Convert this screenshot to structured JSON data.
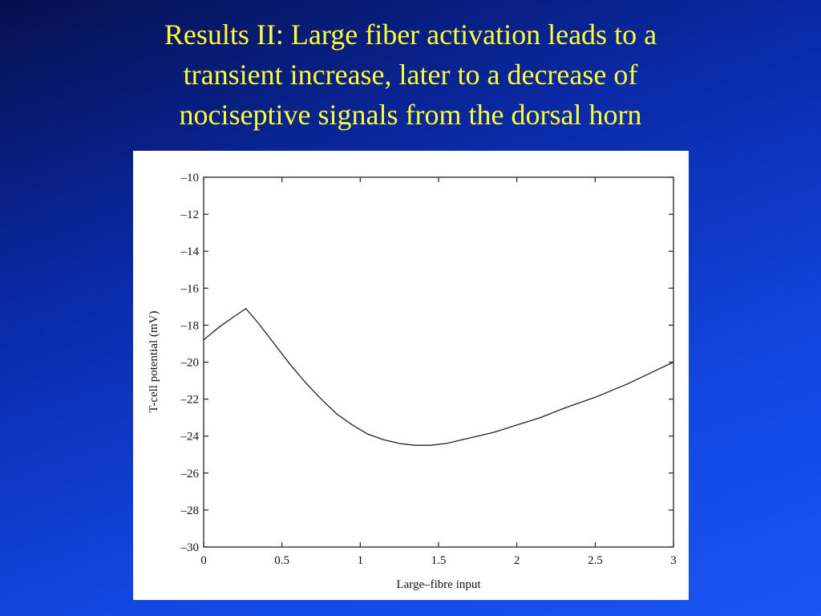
{
  "slide": {
    "title_lines": [
      "Results II: Large fiber activation leads to a",
      "transient increase, later to a decrease of",
      "nociseptive signals from the dorsal horn"
    ]
  },
  "colors": {
    "title": "#ffff33",
    "background": "#0a2aa8",
    "panel": "#ffffff",
    "curve": "#222222"
  },
  "chart_data": {
    "type": "line",
    "xlabel": "Large–fibre input",
    "ylabel": "T-cell potential (mV)",
    "xlim": [
      0,
      3
    ],
    "ylim": [
      -30,
      -10
    ],
    "grid": false,
    "x_ticks": [
      0,
      0.5,
      1,
      1.5,
      2,
      2.5,
      3
    ],
    "x_tick_labels": [
      "0",
      "0.5",
      "1",
      "1.5",
      "2",
      "2.5",
      "3"
    ],
    "y_ticks": [
      -10,
      -12,
      -14,
      -16,
      -18,
      -20,
      -22,
      -24,
      -26,
      -28,
      -30
    ],
    "y_tick_labels": [
      "–10",
      "–12",
      "–14",
      "–16",
      "–18",
      "–20",
      "–22",
      "–24",
      "–26",
      "–28",
      "–30"
    ],
    "series": [
      {
        "x": [
          0,
          0.1,
          0.2,
          0.27,
          0.35,
          0.45,
          0.55,
          0.65,
          0.75,
          0.85,
          0.95,
          1.05,
          1.15,
          1.25,
          1.35,
          1.45,
          1.55,
          1.65,
          1.75,
          1.85,
          2.0,
          2.15,
          2.3,
          2.5,
          2.7,
          2.85,
          3.0
        ],
        "y": [
          -18.8,
          -18.1,
          -17.5,
          -17.1,
          -17.9,
          -19.0,
          -20.1,
          -21.1,
          -22.0,
          -22.8,
          -23.4,
          -23.9,
          -24.2,
          -24.4,
          -24.5,
          -24.5,
          -24.4,
          -24.2,
          -24.0,
          -23.8,
          -23.4,
          -23.0,
          -22.5,
          -21.9,
          -21.2,
          -20.6,
          -20.0
        ]
      }
    ]
  }
}
